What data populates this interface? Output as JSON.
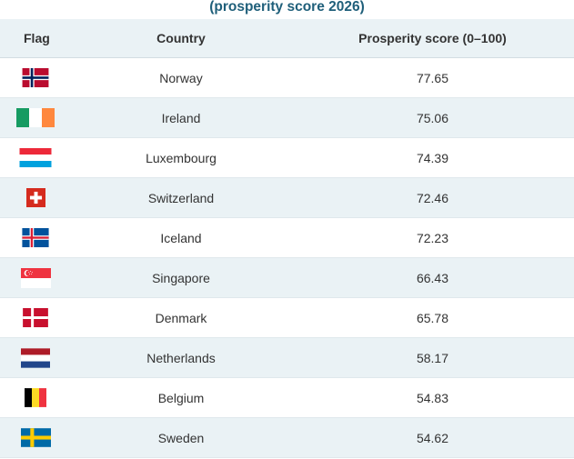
{
  "title": "(prosperity score 2026)",
  "headers": {
    "flag": "Flag",
    "country": "Country",
    "score": "Prosperity score (0–100)"
  },
  "rows": [
    {
      "flag": "norway-flag-icon",
      "country": "Norway",
      "score": "77.65"
    },
    {
      "flag": "ireland-flag-icon",
      "country": "Ireland",
      "score": "75.06"
    },
    {
      "flag": "luxembourg-flag-icon",
      "country": "Luxembourg",
      "score": "74.39"
    },
    {
      "flag": "switzerland-flag-icon",
      "country": "Switzerland",
      "score": "72.46"
    },
    {
      "flag": "iceland-flag-icon",
      "country": "Iceland",
      "score": "72.23"
    },
    {
      "flag": "singapore-flag-icon",
      "country": "Singapore",
      "score": "66.43"
    },
    {
      "flag": "denmark-flag-icon",
      "country": "Denmark",
      "score": "65.78"
    },
    {
      "flag": "netherlands-flag-icon",
      "country": "Netherlands",
      "score": "58.17"
    },
    {
      "flag": "belgium-flag-icon",
      "country": "Belgium",
      "score": "54.83"
    },
    {
      "flag": "sweden-flag-icon",
      "country": "Sweden",
      "score": "54.62"
    }
  ],
  "colors": {
    "title": "#1f5f7a",
    "header_bg": "#eaf2f5",
    "stripe_bg": "#eaf2f5",
    "border": "#dfe8ec"
  }
}
